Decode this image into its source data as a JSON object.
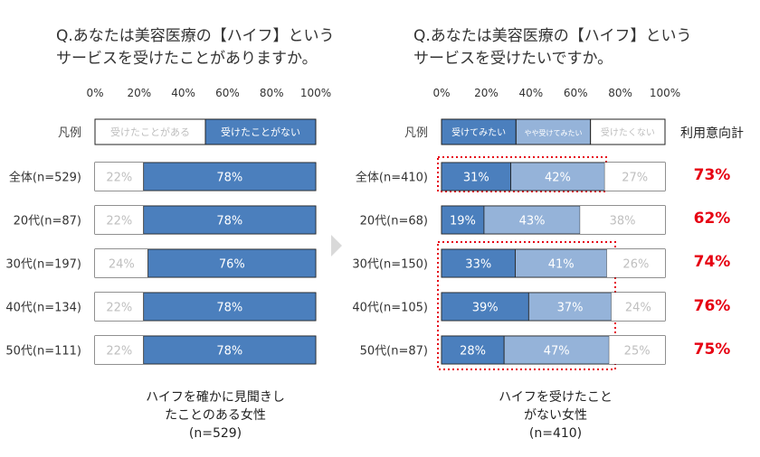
{
  "colors": {
    "dark_blue": "#4b7fbd",
    "light_blue": "#95b3d9",
    "bar_border": "#222222",
    "white": "#ffffff",
    "muted_text": "#bfbfbf",
    "accent_red": "#e60012",
    "dotted_box": "#e60012",
    "arrow": "#d9d9d9"
  },
  "left": {
    "question": [
      "Q.あなたは美容医療の【ハイフ】という",
      "サービスを受けたことがありますか。"
    ],
    "footer": [
      "ハイフを確かに見聞きし",
      "たことのある女性",
      "(n=529)"
    ]
  },
  "right": {
    "question": [
      "Q.あなたは美容医療の【ハイフ】という",
      "サービスを受けたいですか。"
    ],
    "footer": [
      "ハイフを受けたこと",
      "がない女性",
      "(n=410)"
    ],
    "total_header": "利用意向計",
    "totals": [
      "73%",
      "62%",
      "74%",
      "76%",
      "75%"
    ]
  },
  "legend_label": "凡例",
  "chart_data": [
    {
      "type": "bar",
      "orientation": "horizontal",
      "stacked": true,
      "xlim": [
        0,
        100
      ],
      "x_ticks": [
        "0%",
        "20%",
        "40%",
        "60%",
        "80%",
        "100%"
      ],
      "categories": [
        "全体(n=529)",
        "20代(n=87)",
        "30代(n=197)",
        "40代(n=134)",
        "50代(n=111)"
      ],
      "series": [
        {
          "name": "受けたことがある",
          "values": [
            22,
            22,
            24,
            22,
            22
          ],
          "color": "#ffffff",
          "labels": [
            "22%",
            "22%",
            "24%",
            "22%",
            "22%"
          ]
        },
        {
          "name": "受けたことがない",
          "values": [
            78,
            78,
            76,
            78,
            78
          ],
          "color": "#4b7fbd",
          "labels": [
            "78%",
            "78%",
            "76%",
            "78%",
            "78%"
          ]
        }
      ]
    },
    {
      "type": "bar",
      "orientation": "horizontal",
      "stacked": true,
      "xlim": [
        0,
        100
      ],
      "x_ticks": [
        "0%",
        "20%",
        "40%",
        "60%",
        "80%",
        "100%"
      ],
      "categories": [
        "全体(n=410)",
        "20代(n=68)",
        "30代(n=150)",
        "40代(n=105)",
        "50代(n=87)"
      ],
      "series": [
        {
          "name": "受けてみたい",
          "values": [
            31,
            19,
            33,
            39,
            28
          ],
          "color": "#4b7fbd",
          "labels": [
            "31%",
            "19%",
            "33%",
            "39%",
            "28%"
          ]
        },
        {
          "name": "やや受けてみたい",
          "values": [
            42,
            43,
            41,
            37,
            47
          ],
          "color": "#95b3d9",
          "labels": [
            "42%",
            "43%",
            "41%",
            "37%",
            "47%"
          ]
        },
        {
          "name": "受けたくない",
          "values": [
            27,
            38,
            26,
            24,
            25
          ],
          "color": "#ffffff",
          "labels": [
            "27%",
            "38%",
            "26%",
            "24%",
            "25%"
          ]
        }
      ]
    }
  ]
}
